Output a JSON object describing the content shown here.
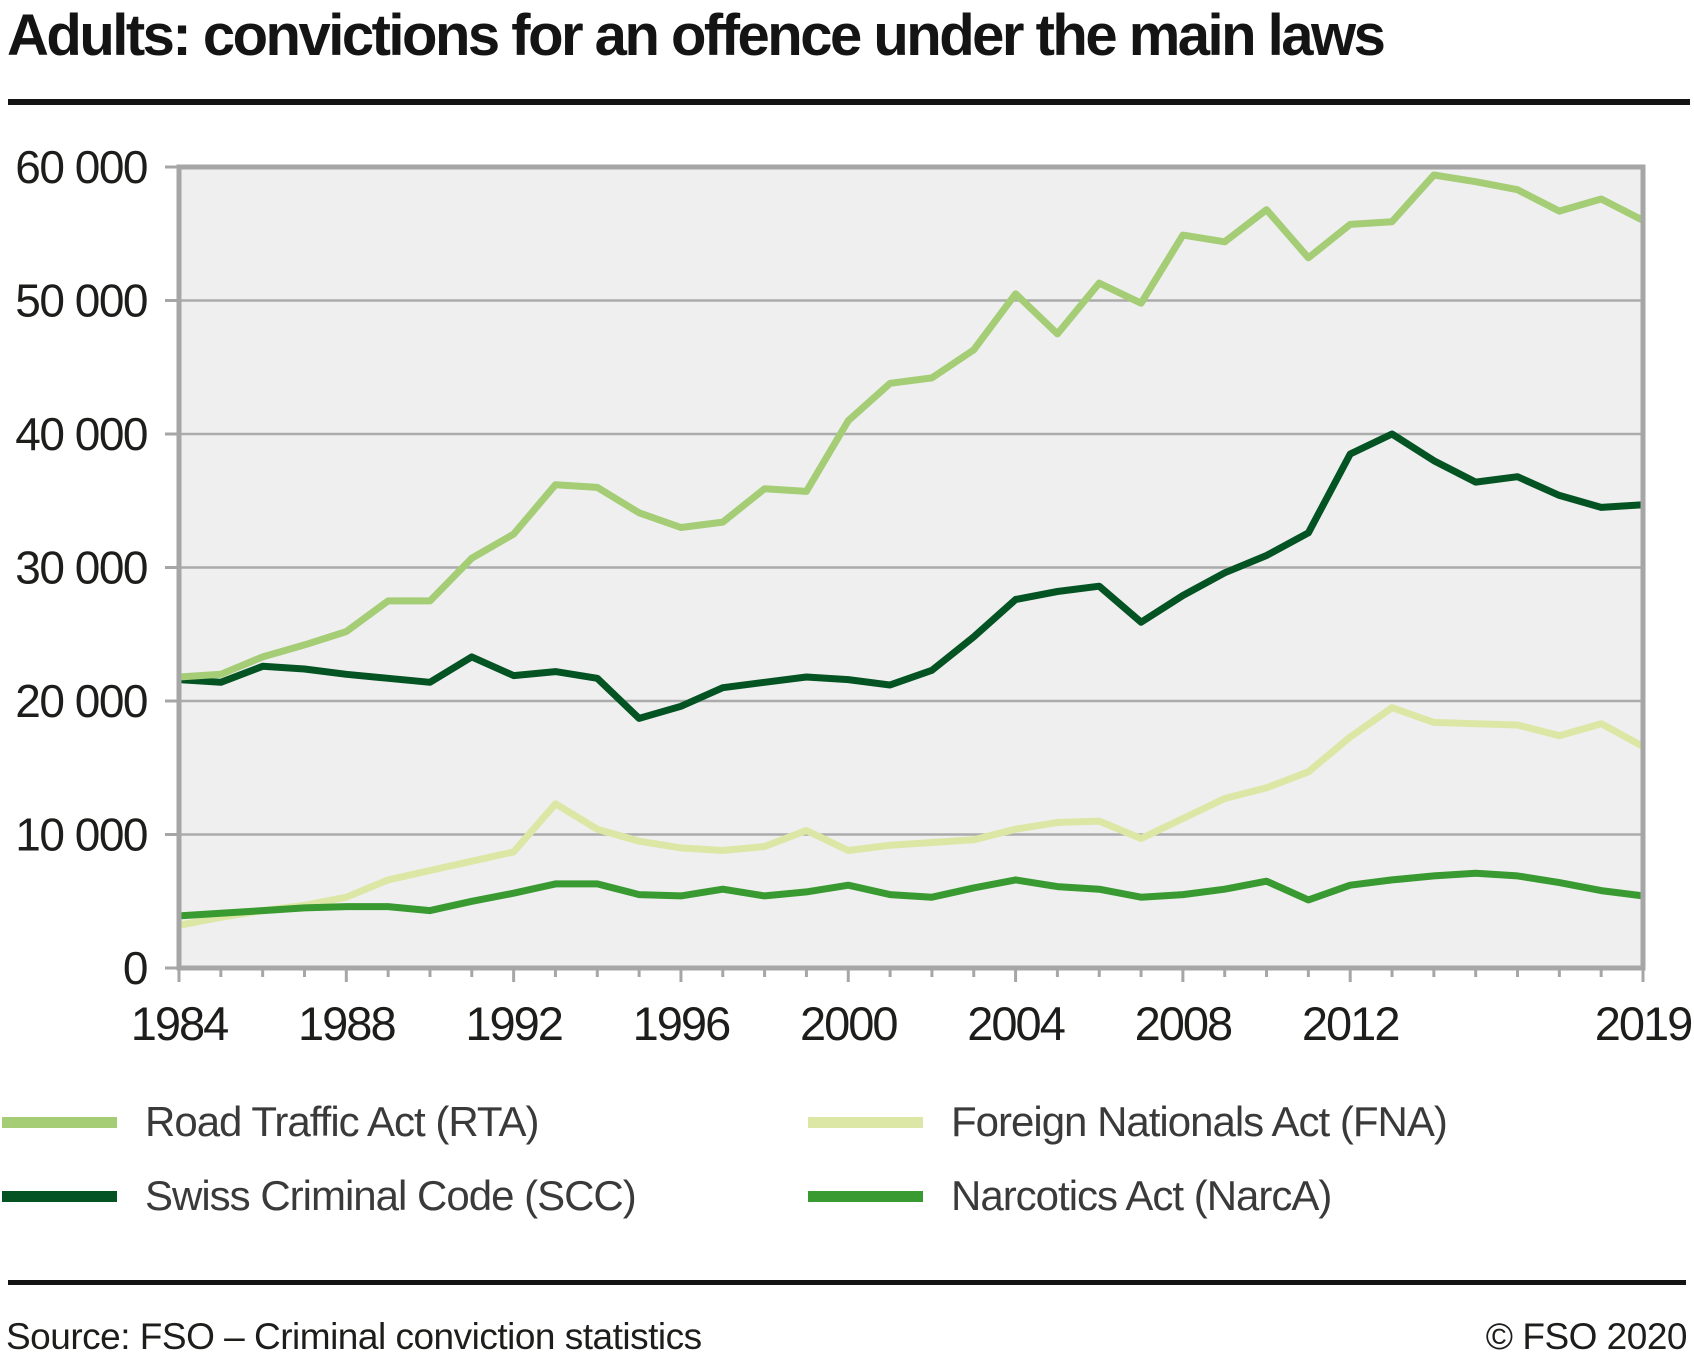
{
  "title": "Adults: convictions for an offence under the main laws",
  "footer": {
    "source": "Source: FSO – Criminal conviction statistics",
    "copyright": "© FSO 2020"
  },
  "legend": {
    "items": [
      {
        "key": "rta",
        "label": "Road Traffic Act (RTA)",
        "color": "#a4cd76"
      },
      {
        "key": "fna",
        "label": "Foreign Nationals Act (FNA)",
        "color": "#dce7a6"
      },
      {
        "key": "scc",
        "label": "Swiss Criminal Code (SCC)",
        "color": "#045323"
      },
      {
        "key": "narca",
        "label": "Narcotics Act (NarcA)",
        "color": "#389a30"
      }
    ]
  },
  "chart_data": {
    "type": "line",
    "title": "Adults: convictions for an offence under the main laws",
    "xlabel": "",
    "ylabel": "",
    "xlim": [
      1984,
      2019
    ],
    "ylim": [
      0,
      60000
    ],
    "grid": true,
    "legend_position": "bottom",
    "plot_bg": "#efefef",
    "grid_color": "#ababab",
    "border_color": "#a6a6a6",
    "x": [
      1984,
      1985,
      1986,
      1987,
      1988,
      1989,
      1990,
      1991,
      1992,
      1993,
      1994,
      1995,
      1996,
      1997,
      1998,
      1999,
      2000,
      2001,
      2002,
      2003,
      2004,
      2005,
      2006,
      2007,
      2008,
      2009,
      2010,
      2011,
      2012,
      2013,
      2014,
      2015,
      2016,
      2017,
      2018,
      2019
    ],
    "x_major_ticks": [
      1984,
      1988,
      1992,
      1996,
      2000,
      2004,
      2008,
      2012,
      2019
    ],
    "x_tick_labels": [
      "1984",
      "1988",
      "1992",
      "1996",
      "2000",
      "2004",
      "2008",
      "2012",
      "2019"
    ],
    "y_ticks": [
      0,
      10000,
      20000,
      30000,
      40000,
      50000,
      60000
    ],
    "y_tick_labels": [
      "0",
      "10 000",
      "20 000",
      "30 000",
      "40 000",
      "50 000",
      "60 000"
    ],
    "series": [
      {
        "key": "rta",
        "name": "Road Traffic Act (RTA)",
        "color": "#a4cd76",
        "values": [
          21800,
          22000,
          23300,
          24200,
          25200,
          27500,
          27500,
          30700,
          32500,
          36200,
          36000,
          34100,
          33000,
          33400,
          35900,
          35700,
          41000,
          43800,
          44200,
          46300,
          50500,
          47500,
          51300,
          49800,
          54900,
          54400,
          56800,
          53200,
          55700,
          55900,
          59400,
          58900,
          58300,
          56700,
          57600,
          56000
        ]
      },
      {
        "key": "scc",
        "name": "Swiss Criminal Code (SCC)",
        "color": "#045323",
        "values": [
          21600,
          21400,
          22600,
          22400,
          22000,
          21700,
          21400,
          23300,
          21900,
          22200,
          21700,
          18700,
          19600,
          21000,
          21400,
          21800,
          21600,
          21200,
          22300,
          24800,
          27600,
          28200,
          28600,
          25900,
          27900,
          29600,
          30900,
          32600,
          38500,
          40000,
          38000,
          36400,
          36800,
          35400,
          34500,
          34700
        ]
      },
      {
        "key": "fna",
        "name": "Foreign Nationals Act (FNA)",
        "color": "#dce7a6",
        "values": [
          3200,
          3800,
          4300,
          4700,
          5300,
          6600,
          7300,
          8000,
          8700,
          12300,
          10400,
          9500,
          9000,
          8800,
          9100,
          10300,
          8800,
          9200,
          9400,
          9600,
          10400,
          10900,
          11000,
          9700,
          11200,
          12700,
          13500,
          14700,
          17300,
          19500,
          18400,
          18300,
          18200,
          17400,
          18300,
          16600
        ]
      },
      {
        "key": "narca",
        "name": "Narcotics Act (NarcA)",
        "color": "#389a30",
        "values": [
          3900,
          4100,
          4300,
          4500,
          4600,
          4600,
          4300,
          5000,
          5600,
          6300,
          6300,
          5500,
          5400,
          5900,
          5400,
          5700,
          6200,
          5500,
          5300,
          6000,
          6600,
          6100,
          5900,
          5300,
          5500,
          5900,
          6500,
          5100,
          6200,
          6600,
          6900,
          7100,
          6900,
          6400,
          5800,
          5400
        ]
      }
    ],
    "draw_order": [
      2,
      3,
      1,
      0
    ]
  }
}
